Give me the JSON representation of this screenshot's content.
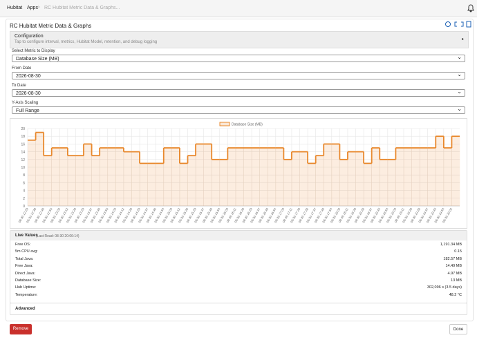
{
  "breadcrumb": [
    "Hubitat",
    "Apps",
    "RC Hubitat Metric Data & Graphs..."
  ],
  "app_title": "RC Hubitat Metric Data & Graphs",
  "configuration": {
    "title": "Configuration",
    "description": "Tap to configure interval, metrics, Hubitat Model, retention, and debug logging"
  },
  "fields": [
    {
      "label": "Select Metric to Display",
      "value": "Database Size (MB)"
    },
    {
      "label": "From Date",
      "value": "2026-08-30"
    },
    {
      "label": "To Date",
      "value": "2026-08-30"
    },
    {
      "label": "Y-Axis Scaling",
      "value": "Full Range"
    }
  ],
  "chart_data": {
    "type": "line",
    "step": true,
    "grid": true,
    "ylim": [
      0,
      20
    ],
    "yticks": [
      0,
      2,
      4,
      6,
      8,
      10,
      12,
      14,
      16,
      18,
      20
    ],
    "categories": [
      "08-30 12:29",
      "08-30 12:38",
      "08-30 12:46",
      "08-30 12:55",
      "08-30 13:03",
      "08-30 13:12",
      "08-30 13:20",
      "08-30 13:29",
      "08-30 13:37",
      "08-30 13:46",
      "08-30 13:55",
      "08-30 14:03",
      "08-30 14:12",
      "08-30 14:20",
      "08-30 14:29",
      "08-30 14:37",
      "08-30 14:46",
      "08-30 14:54",
      "08-30 15:03",
      "08-30 15:12",
      "08-30 15:20",
      "08-30 15:29",
      "08-30 15:37",
      "08-30 15:46",
      "08-30 15:54",
      "08-30 16:03",
      "08-30 16:11",
      "08-30 16:20",
      "08-30 16:29",
      "08-30 16:37",
      "08-30 16:46",
      "08-30 16:54",
      "08-30 17:03",
      "08-30 17:11",
      "08-30 17:20",
      "08-30 17:28",
      "08-30 17:37",
      "08-30 17:46",
      "08-30 17:54",
      "08-30 18:03",
      "08-30 18:11",
      "08-30 18:20",
      "08-30 18:28",
      "08-30 18:37",
      "08-30 18:45",
      "08-30 18:54",
      "08-30 19:03",
      "08-30 19:11",
      "08-30 19:20",
      "08-30 19:28",
      "08-30 19:37",
      "08-30 19:45",
      "08-30 19:54",
      "08-30 20:02"
    ],
    "series": [
      {
        "name": "Database Size (MB)",
        "color": "#e8882c",
        "values": [
          17,
          19,
          13,
          15,
          15,
          13,
          13,
          16,
          13,
          15,
          15,
          15,
          14,
          14,
          11,
          11,
          11,
          15,
          15,
          11,
          13,
          16,
          16,
          12,
          12,
          15,
          15,
          15,
          15,
          15,
          15,
          15,
          12,
          14,
          14,
          11,
          13,
          16,
          16,
          12,
          14,
          14,
          11,
          15,
          12,
          12,
          15,
          15,
          15,
          15,
          15,
          18,
          15,
          18
        ]
      }
    ]
  },
  "live_values": {
    "title": "Live Values",
    "last_read": "(Last Read: 08-30 20:06:14)",
    "rows": [
      [
        "Free OS:",
        "1,191.34 MB"
      ],
      [
        "5m CPU avg:",
        "0.15"
      ],
      [
        "Total Java:",
        "182.57 MB"
      ],
      [
        "Free Java:",
        "14.49 MB"
      ],
      [
        "Direct Java:",
        "4.97 MB"
      ],
      [
        "Database Size:",
        "13 MB"
      ],
      [
        "Hub Uptime:",
        "302,096 s (3.5 days)"
      ],
      [
        "Temperature:",
        "48.2 °C"
      ]
    ]
  },
  "advanced": "Advanced",
  "buttons": {
    "remove": "Remove",
    "done": "Done"
  }
}
